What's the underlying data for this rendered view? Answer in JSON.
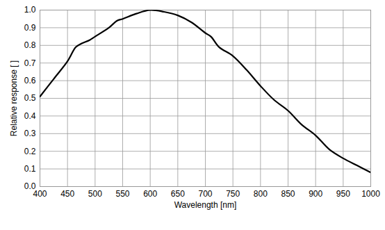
{
  "chart_data": {
    "type": "line",
    "x_label": "Wavelength [nm]",
    "y_label": "Relative response [ ]",
    "x": [
      400,
      425,
      450,
      465,
      475,
      490,
      500,
      525,
      540,
      550,
      575,
      600,
      625,
      650,
      675,
      700,
      710,
      725,
      750,
      775,
      800,
      825,
      850,
      875,
      900,
      925,
      950,
      975,
      1000
    ],
    "values": [
      0.51,
      0.61,
      0.71,
      0.79,
      0.81,
      0.83,
      0.85,
      0.9,
      0.94,
      0.95,
      0.98,
      1.0,
      0.99,
      0.97,
      0.93,
      0.87,
      0.85,
      0.79,
      0.74,
      0.66,
      0.57,
      0.49,
      0.43,
      0.35,
      0.29,
      0.21,
      0.16,
      0.12,
      0.08
    ],
    "color": "#000000",
    "xlim": [
      400,
      1000
    ],
    "xticks": [
      400,
      450,
      500,
      550,
      600,
      650,
      700,
      750,
      800,
      850,
      900,
      950,
      1000
    ],
    "ylim": [
      0,
      1
    ],
    "yticks": [
      {
        "value": 0,
        "label": "0.0"
      },
      0.1,
      0.2,
      0.3,
      0.4,
      0.5,
      0.6,
      0.7,
      0.8,
      0.9,
      {
        "value": 1,
        "label": "1.0"
      }
    ],
    "grid": true
  }
}
